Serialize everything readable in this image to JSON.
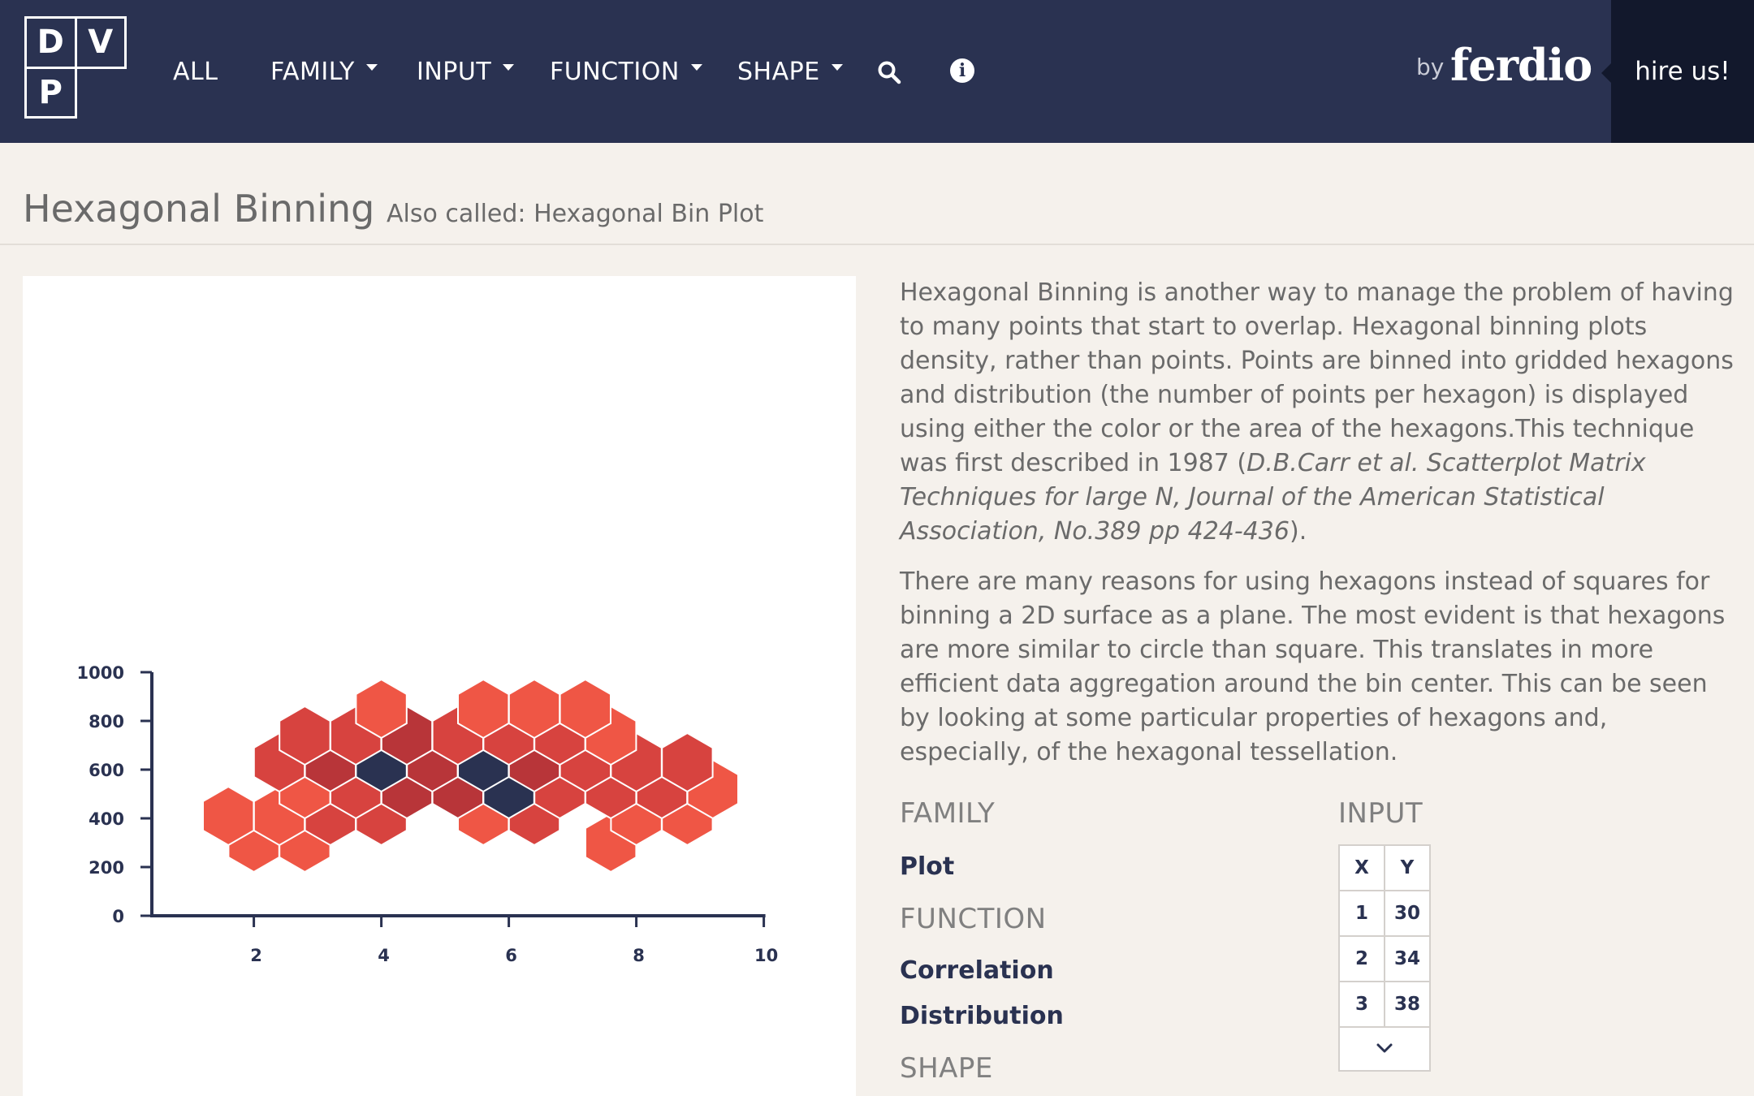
{
  "nav": {
    "logo_letters": [
      "D",
      "V",
      "P"
    ],
    "items": [
      {
        "label": "ALL",
        "dropdown": false
      },
      {
        "label": "FAMILY",
        "dropdown": true
      },
      {
        "label": "INPUT",
        "dropdown": true
      },
      {
        "label": "FUNCTION",
        "dropdown": true
      },
      {
        "label": "SHAPE",
        "dropdown": true
      }
    ],
    "icons": [
      "search-icon",
      "info-icon"
    ],
    "by": "by",
    "brand": "ferdio",
    "hire": "hire us!",
    "colors": {
      "bar": "#2a3251",
      "hire_bg": "#12182c"
    }
  },
  "page": {
    "title": "Hexagonal Binning",
    "also_called": "Also called: Hexagonal Bin Plot"
  },
  "description": {
    "p1_text": "Hexagonal Binning is another way to manage the problem of having to many points that start to overlap. Hexagonal binning plots density, rather than points. Points are binned into gridded hexagons and distribution (the number of points per hexagon) is displayed using either the color or the area of the hexagons.This technique was first described in 1987 (",
    "p1_citation": "D.B.Carr et al. Scatterplot Matrix Techniques for large N, Journal of the American Statistical Association, No.389 pp 424-436",
    "p1_end": ").",
    "p2": "There are many reasons for using hexagons instead of squares for binning a 2D surface as a plane. The most evident is that hexagons are more similar to circle than square. This translates in more efficient data aggregation around the bin center. This can be seen by looking at some particular properties of hexagons and, especially, of the hexagonal tessellation."
  },
  "meta": {
    "family_label": "FAMILY",
    "family": [
      "Plot"
    ],
    "function_label": "FUNCTION",
    "functions": [
      "Correlation",
      "Distribution"
    ],
    "shape_label": "SHAPE",
    "input_label": "INPUT",
    "input_table": {
      "headers": [
        "X",
        "Y"
      ],
      "rows": [
        [
          "1",
          "30"
        ],
        [
          "2",
          "34"
        ],
        [
          "3",
          "38"
        ]
      ],
      "expand_icon": "chevron-down-icon"
    }
  },
  "chart_data": {
    "type": "hexbin",
    "xlim": [
      0.4,
      10
    ],
    "ylim": [
      0,
      1000
    ],
    "x_ticks": [
      2,
      4,
      6,
      8,
      10
    ],
    "y_ticks": [
      0,
      200,
      400,
      600,
      800,
      1000
    ],
    "x_tick_labels": [
      "2",
      "4",
      "6",
      "8",
      "10"
    ],
    "y_tick_labels": [
      "0",
      "200",
      "400",
      "600",
      "800",
      "1000"
    ],
    "title": "",
    "xlabel": "",
    "ylabel": "",
    "color_scale": {
      "1": "#ef5645",
      "2": "#d7433f",
      "3": "#b83539",
      "4": "#2a3251"
    },
    "bins": [
      {
        "x": 2.0,
        "y": 300,
        "level": 1
      },
      {
        "x": 2.8,
        "y": 300,
        "level": 1
      },
      {
        "x": 7.6,
        "y": 300,
        "level": 1
      },
      {
        "x": 1.6,
        "y": 410,
        "level": 1
      },
      {
        "x": 2.4,
        "y": 410,
        "level": 1
      },
      {
        "x": 3.2,
        "y": 410,
        "level": 2
      },
      {
        "x": 4.0,
        "y": 410,
        "level": 2
      },
      {
        "x": 5.6,
        "y": 410,
        "level": 1
      },
      {
        "x": 6.4,
        "y": 410,
        "level": 2
      },
      {
        "x": 8.0,
        "y": 410,
        "level": 1
      },
      {
        "x": 8.8,
        "y": 410,
        "level": 1
      },
      {
        "x": 2.8,
        "y": 520,
        "level": 1
      },
      {
        "x": 3.6,
        "y": 520,
        "level": 2
      },
      {
        "x": 4.4,
        "y": 520,
        "level": 3
      },
      {
        "x": 5.2,
        "y": 520,
        "level": 3
      },
      {
        "x": 6.0,
        "y": 520,
        "level": 4
      },
      {
        "x": 6.8,
        "y": 520,
        "level": 2
      },
      {
        "x": 7.6,
        "y": 520,
        "level": 2
      },
      {
        "x": 8.4,
        "y": 520,
        "level": 2
      },
      {
        "x": 9.2,
        "y": 520,
        "level": 1
      },
      {
        "x": 2.4,
        "y": 630,
        "level": 2
      },
      {
        "x": 3.2,
        "y": 630,
        "level": 3
      },
      {
        "x": 4.0,
        "y": 630,
        "level": 4
      },
      {
        "x": 4.8,
        "y": 630,
        "level": 3
      },
      {
        "x": 5.6,
        "y": 630,
        "level": 4
      },
      {
        "x": 6.4,
        "y": 630,
        "level": 3
      },
      {
        "x": 7.2,
        "y": 630,
        "level": 2
      },
      {
        "x": 8.0,
        "y": 630,
        "level": 2
      },
      {
        "x": 8.8,
        "y": 630,
        "level": 2
      },
      {
        "x": 2.8,
        "y": 740,
        "level": 2
      },
      {
        "x": 3.6,
        "y": 740,
        "level": 2
      },
      {
        "x": 4.4,
        "y": 740,
        "level": 3
      },
      {
        "x": 5.2,
        "y": 740,
        "level": 2
      },
      {
        "x": 6.0,
        "y": 740,
        "level": 2
      },
      {
        "x": 6.8,
        "y": 740,
        "level": 2
      },
      {
        "x": 7.6,
        "y": 740,
        "level": 1
      },
      {
        "x": 4.0,
        "y": 850,
        "level": 1
      },
      {
        "x": 5.6,
        "y": 850,
        "level": 1
      },
      {
        "x": 6.4,
        "y": 850,
        "level": 1
      },
      {
        "x": 7.2,
        "y": 850,
        "level": 1
      }
    ]
  }
}
